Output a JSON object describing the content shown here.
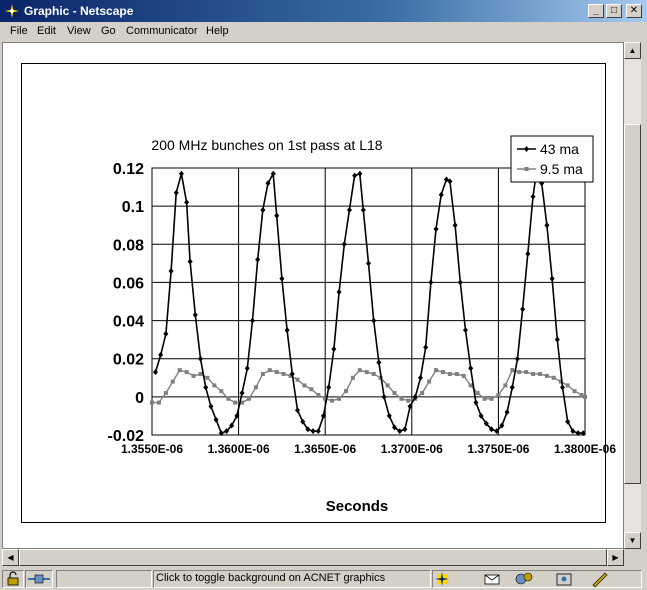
{
  "window": {
    "title": "Graphic - Netscape"
  },
  "menu": [
    "File",
    "Edit",
    "View",
    "Go",
    "Communicator",
    "Help"
  ],
  "status": {
    "text": "Click to toggle background on ACNET graphics"
  },
  "chart_data": {
    "type": "line",
    "title": "200 MHz bunches on 1st pass at L18",
    "xlabel": "Seconds",
    "ylabel": "",
    "xlim": [
      1.355e-06,
      1.38e-06
    ],
    "ylim": [
      -0.02,
      0.12
    ],
    "yticks": [
      "0.12",
      "0.1",
      "0.08",
      "0.06",
      "0.04",
      "0.02",
      "0",
      "-0.02"
    ],
    "xticks": [
      "1.3550E-06",
      "1.3600E-06",
      "1.3650E-06",
      "1.3700E-06",
      "1.3750E-06",
      "1.3800E-06"
    ],
    "grid": true,
    "legend_position": "top-right",
    "series": [
      {
        "name": "43 ma",
        "color": "#000000",
        "marker": "diamond",
        "x": [
          1.3552e-06,
          1.3555e-06,
          1.3558e-06,
          1.3561e-06,
          1.3564e-06,
          1.3567e-06,
          1.357e-06,
          1.3572e-06,
          1.3575e-06,
          1.3578e-06,
          1.3581e-06,
          1.3584e-06,
          1.3587e-06,
          1.359e-06,
          1.3593e-06,
          1.3596e-06,
          1.3599e-06,
          1.3602e-06,
          1.3605e-06,
          1.3608e-06,
          1.3611e-06,
          1.3614e-06,
          1.3617e-06,
          1.362e-06,
          1.3622e-06,
          1.3625e-06,
          1.3628e-06,
          1.3631e-06,
          1.3634e-06,
          1.3637e-06,
          1.364e-06,
          1.3643e-06,
          1.3646e-06,
          1.3649e-06,
          1.3652e-06,
          1.3655e-06,
          1.3658e-06,
          1.3661e-06,
          1.3664e-06,
          1.3667e-06,
          1.367e-06,
          1.3672e-06,
          1.3675e-06,
          1.3678e-06,
          1.3681e-06,
          1.3684e-06,
          1.3687e-06,
          1.369e-06,
          1.3693e-06,
          1.3696e-06,
          1.3699e-06,
          1.3702e-06,
          1.3705e-06,
          1.3708e-06,
          1.3711e-06,
          1.3714e-06,
          1.3717e-06,
          1.372e-06,
          1.3722e-06,
          1.3725e-06,
          1.3728e-06,
          1.3731e-06,
          1.3734e-06,
          1.3737e-06,
          1.374e-06,
          1.3743e-06,
          1.3746e-06,
          1.3749e-06,
          1.3752e-06,
          1.3755e-06,
          1.3758e-06,
          1.3761e-06,
          1.3764e-06,
          1.3767e-06,
          1.377e-06,
          1.3772e-06,
          1.3775e-06,
          1.3778e-06,
          1.3781e-06,
          1.3784e-06,
          1.3787e-06,
          1.379e-06,
          1.3793e-06,
          1.3796e-06,
          1.3799e-06
        ],
        "y": [
          0.013,
          0.022,
          0.033,
          0.066,
          0.107,
          0.117,
          0.102,
          0.071,
          0.043,
          0.02,
          0.005,
          -0.005,
          -0.012,
          -0.019,
          -0.018,
          -0.015,
          -0.01,
          0.002,
          0.015,
          0.04,
          0.072,
          0.098,
          0.112,
          0.117,
          0.095,
          0.062,
          0.035,
          0.012,
          -0.007,
          -0.013,
          -0.017,
          -0.018,
          -0.018,
          -0.01,
          0.005,
          0.025,
          0.055,
          0.08,
          0.098,
          0.116,
          0.117,
          0.098,
          0.07,
          0.04,
          0.018,
          0.0,
          -0.01,
          -0.016,
          -0.018,
          -0.017,
          -0.005,
          0.0,
          0.01,
          0.026,
          0.06,
          0.088,
          0.106,
          0.114,
          0.113,
          0.09,
          0.06,
          0.035,
          0.015,
          -0.003,
          -0.01,
          -0.014,
          -0.017,
          -0.018,
          -0.015,
          -0.008,
          0.005,
          0.02,
          0.046,
          0.075,
          0.105,
          0.118,
          0.112,
          0.09,
          0.062,
          0.03,
          0.005,
          -0.013,
          -0.018,
          -0.019,
          -0.019
        ]
      },
      {
        "name": "9.5 ma",
        "color": "#808080",
        "marker": "square",
        "x": [
          1.355e-06,
          1.3554e-06,
          1.3558e-06,
          1.3562e-06,
          1.3566e-06,
          1.357e-06,
          1.3574e-06,
          1.3578e-06,
          1.3582e-06,
          1.3586e-06,
          1.359e-06,
          1.3594e-06,
          1.3598e-06,
          1.3602e-06,
          1.3606e-06,
          1.361e-06,
          1.3614e-06,
          1.3618e-06,
          1.3622e-06,
          1.3626e-06,
          1.363e-06,
          1.3634e-06,
          1.3638e-06,
          1.3642e-06,
          1.3646e-06,
          1.365e-06,
          1.3654e-06,
          1.3658e-06,
          1.3662e-06,
          1.3666e-06,
          1.367e-06,
          1.3674e-06,
          1.3678e-06,
          1.3682e-06,
          1.3686e-06,
          1.369e-06,
          1.3694e-06,
          1.3698e-06,
          1.3702e-06,
          1.3706e-06,
          1.371e-06,
          1.3714e-06,
          1.3718e-06,
          1.3722e-06,
          1.3726e-06,
          1.373e-06,
          1.3734e-06,
          1.3738e-06,
          1.3742e-06,
          1.3746e-06,
          1.375e-06,
          1.3754e-06,
          1.3758e-06,
          1.3762e-06,
          1.3766e-06,
          1.377e-06,
          1.3774e-06,
          1.3778e-06,
          1.3782e-06,
          1.3786e-06,
          1.379e-06,
          1.3794e-06,
          1.3798e-06,
          1.38e-06
        ],
        "y": [
          -0.003,
          -0.003,
          0.002,
          0.008,
          0.014,
          0.013,
          0.011,
          0.012,
          0.01,
          0.006,
          0.003,
          -0.001,
          -0.003,
          -0.003,
          -0.001,
          0.005,
          0.012,
          0.014,
          0.013,
          0.012,
          0.011,
          0.009,
          0.006,
          0.004,
          0.001,
          -0.001,
          -0.002,
          -0.001,
          0.003,
          0.01,
          0.014,
          0.013,
          0.012,
          0.01,
          0.006,
          0.002,
          -0.001,
          -0.002,
          -0.001,
          0.002,
          0.008,
          0.014,
          0.013,
          0.012,
          0.012,
          0.011,
          0.006,
          0.002,
          -0.001,
          -0.001,
          0.001,
          0.006,
          0.014,
          0.013,
          0.013,
          0.012,
          0.012,
          0.011,
          0.01,
          0.008,
          0.006,
          0.003,
          0.001,
          0.0
        ]
      }
    ]
  }
}
